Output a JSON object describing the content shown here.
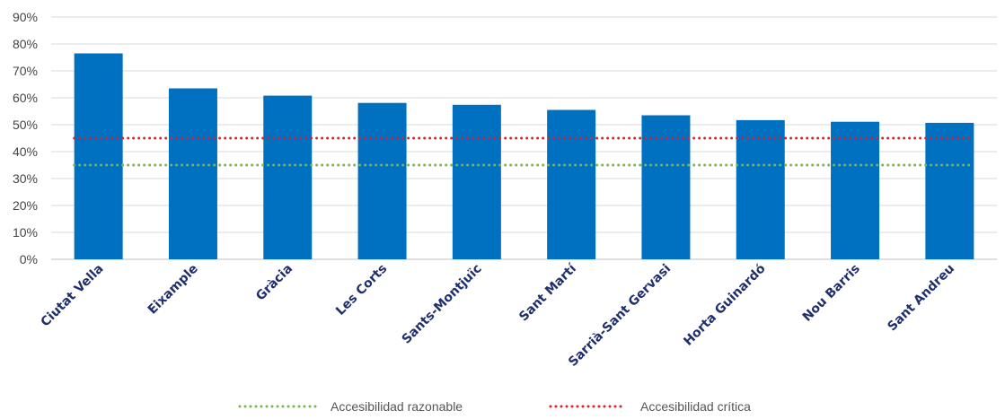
{
  "chart_data": {
    "type": "bar",
    "categories": [
      "Ciutat Vella",
      "Eixample",
      "Gràcia",
      "Les Corts",
      "Sants-Montjuïc",
      "Sant Martí",
      "Sarrià-Sant Gervasi",
      "Horta Guinardó",
      "Nou Barris",
      "Sant Andreu"
    ],
    "series": [
      {
        "values": [
          76.5,
          63.5,
          60.8,
          58.1,
          57.4,
          55.5,
          53.5,
          51.7,
          51.1,
          50.7
        ]
      }
    ],
    "reference_lines": [
      {
        "name": "Accesibilidad razonable",
        "value": 35,
        "color": "#7ab648",
        "style": "dotted"
      },
      {
        "name": "Accesibilidad crítica",
        "value": 45,
        "color": "#e0202a",
        "style": "dotted"
      }
    ],
    "y_ticks": [
      "0%",
      "10%",
      "20%",
      "30%",
      "40%",
      "50%",
      "60%",
      "70%",
      "80%",
      "90%"
    ],
    "ylim": [
      0,
      90
    ],
    "grid": true,
    "legend_position": "bottom",
    "colors": {
      "bar": "#0070c0",
      "grid": "#d9d9d9"
    }
  }
}
